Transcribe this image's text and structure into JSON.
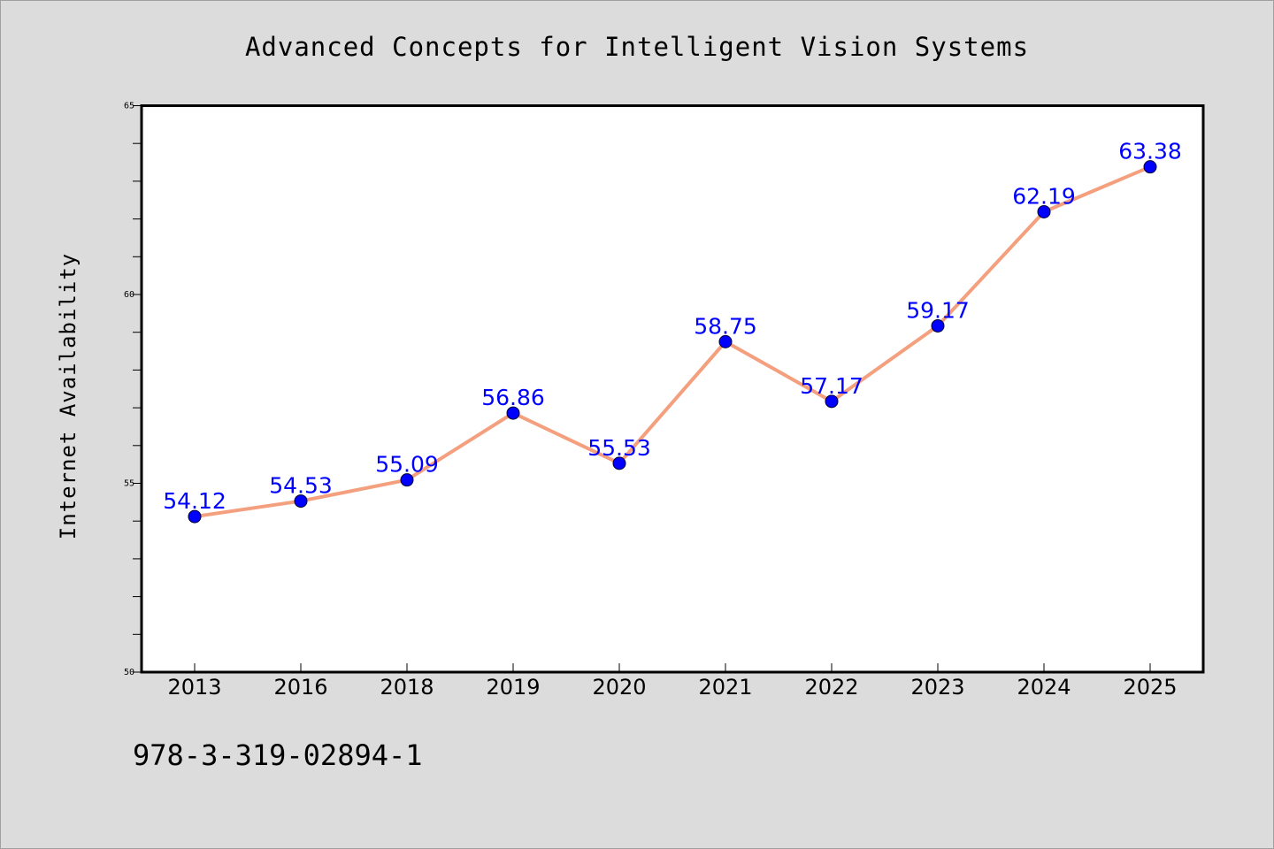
{
  "chart_data": {
    "type": "line",
    "title": "Advanced Concepts for Intelligent Vision Systems",
    "xlabel": "",
    "ylabel": "Internet Availability",
    "categories": [
      "2013",
      "2016",
      "2018",
      "2019",
      "2020",
      "2021",
      "2022",
      "2023",
      "2024",
      "2025"
    ],
    "series": [
      {
        "values": [
          54.12,
          54.53,
          55.09,
          56.86,
          55.53,
          58.75,
          57.17,
          59.17,
          62.19,
          63.38
        ],
        "labels": [
          "54.12",
          "54.53",
          "55.09",
          "56.86",
          "55.53",
          "58.75",
          "57.17",
          "59.17",
          "62.19",
          "63.38"
        ]
      }
    ],
    "ylim": [
      50,
      65
    ],
    "yticks": [
      "50",
      "55",
      "60",
      "65"
    ],
    "yminor_step": 1,
    "grid": false,
    "legend": "none",
    "line_color": "#f4a07e",
    "marker_color": "#0000ff",
    "label_color": "#0000ff"
  },
  "footer": {
    "isbn": "978-3-319-02894-1"
  },
  "colors": {
    "background": "#dcdcdc",
    "plot_background": "#ffffff"
  }
}
